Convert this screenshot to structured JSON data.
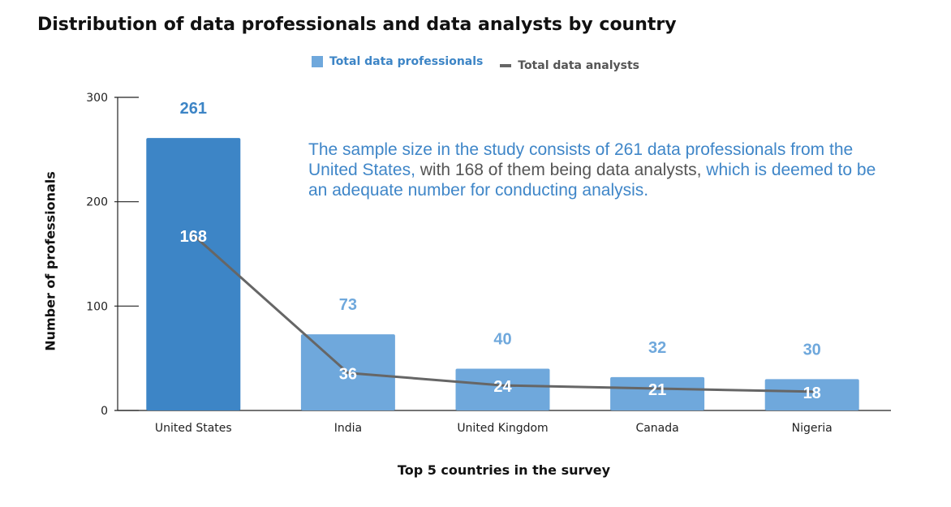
{
  "chart_data": {
    "type": "bar",
    "title": "Distribution of data professionals and data analysts by country",
    "xlabel": "Top 5 countries in the survey",
    "ylabel": "Number of professionals",
    "categories": [
      "United States",
      "India",
      "United Kingdom",
      "Canada",
      "Nigeria"
    ],
    "ylim": [
      0,
      300
    ],
    "yticks": [
      0,
      100,
      200,
      300
    ],
    "legend_position": "top-center",
    "series": [
      {
        "name": "Total data professionals",
        "kind": "bar",
        "values": [
          261,
          73,
          40,
          32,
          30
        ]
      },
      {
        "name": "Total data analysts",
        "kind": "line",
        "values": [
          168,
          36,
          24,
          21,
          18
        ]
      }
    ],
    "annotation": {
      "blue_1": "The sample size in the study consists of 261 data professionals from the United States,",
      "gray": " with 168 of them being data analysts,",
      "blue_2": " which is deemed to be an adequate number for conducting analysis."
    },
    "colors": {
      "bar_highlight": "#3d85c6",
      "bar": "#6fa8dc",
      "line": "#666666",
      "label_highlight": "#3d85c6",
      "label": "#6fa8dc"
    }
  }
}
